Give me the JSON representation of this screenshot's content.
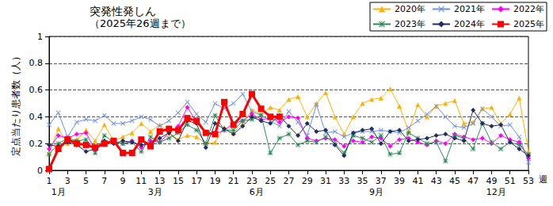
{
  "chart_data": {
    "type": "line",
    "title": "突発性発しん",
    "subtitle": "（2025年26週まで）",
    "x_label": "週",
    "y_label": "定点当たり患者数（人）",
    "x": [
      1,
      2,
      3,
      4,
      5,
      6,
      7,
      8,
      9,
      10,
      11,
      12,
      13,
      14,
      15,
      16,
      17,
      18,
      19,
      20,
      21,
      22,
      23,
      24,
      25,
      26,
      27,
      28,
      29,
      30,
      31,
      32,
      33,
      34,
      35,
      36,
      37,
      38,
      39,
      40,
      41,
      42,
      43,
      44,
      45,
      46,
      47,
      48,
      49,
      50,
      51,
      52,
      53
    ],
    "xlim": [
      1,
      53
    ],
    "xticks": [
      1,
      3,
      5,
      7,
      9,
      11,
      13,
      15,
      17,
      19,
      21,
      23,
      25,
      27,
      29,
      31,
      33,
      35,
      37,
      39,
      41,
      43,
      45,
      47,
      49,
      51,
      53
    ],
    "ylim": [
      0,
      1
    ],
    "yticks": [
      0,
      0.2,
      0.4,
      0.6,
      0.8,
      1
    ],
    "grid": true,
    "legend": "top-right",
    "annotations": [
      {
        "text": "1月",
        "x": 2
      },
      {
        "text": "3月",
        "x": 12.5
      },
      {
        "text": "6月",
        "x": 23.5
      },
      {
        "text": "9月",
        "x": 36.5
      },
      {
        "text": "12月",
        "x": 49.5
      }
    ],
    "series": [
      {
        "name": "2020年",
        "color": "#ffb000",
        "marker": "triangle",
        "values": [
          0.13,
          0.31,
          0.2,
          0.23,
          0.3,
          0.22,
          0.34,
          0.22,
          0.25,
          0.28,
          0.35,
          0.29,
          0.34,
          0.28,
          0.23,
          0.26,
          0.25,
          0.2,
          0.21,
          0.32,
          0.28,
          0.35,
          0.45,
          0.42,
          0.47,
          0.45,
          0.53,
          0.55,
          0.4,
          0.5,
          0.58,
          0.4,
          0.27,
          0.4,
          0.5,
          0.53,
          0.54,
          0.61,
          0.48,
          0.29,
          0.49,
          0.4,
          0.48,
          0.5,
          0.52,
          0.35,
          0.36,
          0.46,
          0.47,
          0.35,
          0.42,
          0.54,
          0.14
        ]
      },
      {
        "name": "2021年",
        "color": "#6b8fe6",
        "marker": "x",
        "values": [
          0.34,
          0.43,
          0.25,
          0.36,
          0.38,
          0.37,
          0.41,
          0.35,
          0.35,
          0.37,
          0.4,
          0.38,
          0.33,
          0.37,
          0.43,
          0.51,
          0.42,
          0.36,
          0.5,
          0.46,
          0.5,
          0.57,
          0.44,
          0.41,
          0.37,
          0.33,
          0.44,
          0.36,
          0.26,
          0.49,
          0.28,
          0.29,
          0.25,
          0.28,
          0.29,
          0.29,
          0.3,
          0.29,
          0.28,
          0.32,
          0.37,
          0.42,
          0.48,
          0.4,
          0.33,
          0.32,
          0.35,
          0.46,
          0.4,
          0.33,
          0.34,
          0.25,
          0.06
        ]
      },
      {
        "name": "2022年",
        "color": "#ff00ff",
        "marker": "diamond",
        "values": [
          0.16,
          0.26,
          0.24,
          0.27,
          0.28,
          0.15,
          0.21,
          0.21,
          0.2,
          0.22,
          0.17,
          0.22,
          0.21,
          0.28,
          0.33,
          0.47,
          0.36,
          0.28,
          0.27,
          0.3,
          0.35,
          0.37,
          0.42,
          0.38,
          0.39,
          0.36,
          0.4,
          0.39,
          0.24,
          0.22,
          0.24,
          0.23,
          0.18,
          0.22,
          0.21,
          0.25,
          0.24,
          0.18,
          0.23,
          0.24,
          0.21,
          0.19,
          0.22,
          0.2,
          0.27,
          0.25,
          0.23,
          0.24,
          0.2,
          0.26,
          0.23,
          0.21,
          0.09
        ]
      },
      {
        "name": "2023年",
        "color": "#2e8b57",
        "marker": "asterisk",
        "values": [
          0.12,
          0.2,
          0.24,
          0.22,
          0.23,
          0.13,
          0.26,
          0.21,
          0.2,
          0.21,
          0.14,
          0.25,
          0.21,
          0.24,
          0.28,
          0.34,
          0.3,
          0.2,
          0.41,
          0.3,
          0.3,
          0.37,
          0.38,
          0.41,
          0.13,
          0.24,
          0.27,
          0.19,
          0.22,
          0.21,
          0.25,
          0.2,
          0.13,
          0.26,
          0.24,
          0.21,
          0.26,
          0.12,
          0.13,
          0.28,
          0.24,
          0.2,
          0.21,
          0.07,
          0.26,
          0.24,
          0.16,
          0.35,
          0.21,
          0.16,
          0.21,
          0.19,
          0.12
        ]
      },
      {
        "name": "2024年",
        "color": "#1f2f5f",
        "marker": "diamond",
        "values": [
          0.19,
          0.18,
          0.21,
          0.19,
          0.14,
          0.16,
          0.22,
          0.2,
          0.22,
          0.21,
          0.19,
          0.2,
          0.24,
          0.28,
          0.22,
          0.37,
          0.35,
          0.17,
          0.35,
          0.31,
          0.27,
          0.33,
          0.4,
          0.37,
          0.35,
          0.41,
          0.33,
          0.26,
          0.35,
          0.29,
          0.3,
          0.19,
          0.11,
          0.28,
          0.3,
          0.31,
          0.2,
          0.29,
          0.3,
          0.22,
          0.23,
          0.24,
          0.26,
          0.27,
          0.24,
          0.22,
          0.45,
          0.35,
          0.33,
          0.34,
          0.21,
          0.16,
          0.11
        ]
      },
      {
        "name": "2025年",
        "color": "#ff0000",
        "marker": "square",
        "values": [
          0.01,
          0.16,
          0.23,
          0.2,
          0.19,
          0.17,
          0.2,
          0.22,
          0.13,
          0.13,
          0.23,
          0.18,
          0.29,
          0.31,
          0.3,
          0.39,
          0.37,
          0.28,
          0.27,
          0.51,
          0.34,
          0.42,
          0.57,
          0.46,
          0.4,
          0.4,
          null,
          null,
          null,
          null,
          null,
          null,
          null,
          null,
          null,
          null,
          null,
          null,
          null,
          null,
          null,
          null,
          null,
          null,
          null,
          null,
          null,
          null,
          null,
          null,
          null,
          null,
          null
        ]
      }
    ]
  }
}
